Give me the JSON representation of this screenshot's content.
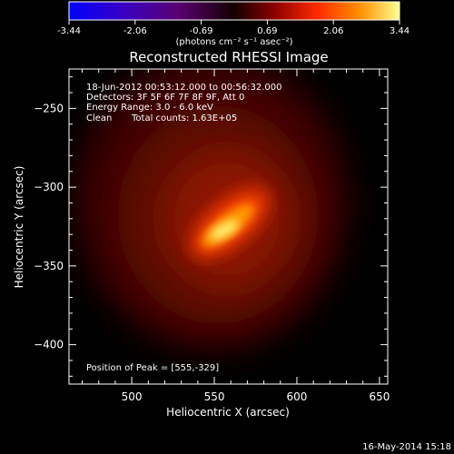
{
  "chart_data": {
    "type": "heatmap",
    "title": "Reconstructed RHESSI Image",
    "xlabel": "Heliocentric X (arcsec)",
    "ylabel": "Heliocentric Y (arcsec)",
    "xlim": [
      462,
      655
    ],
    "ylim": [
      -425,
      -225
    ],
    "x_ticks": [
      500,
      550,
      600,
      650
    ],
    "y_ticks": [
      -250,
      -300,
      -350,
      -400
    ],
    "colorbar": {
      "ticks": [
        "-3.44",
        "-2.06",
        "-0.69",
        "0.69",
        "2.06",
        "3.44"
      ],
      "range": [
        -3.44,
        3.44
      ],
      "units_label": "(photons cm⁻² s⁻¹ asec⁻²)",
      "colormap": [
        "#0000ff",
        "#3a00c0",
        "#5a0070",
        "#000000",
        "#6a0000",
        "#ff2000",
        "#ff8000",
        "#ffff80"
      ]
    },
    "annotations": {
      "time_range": "18-Jun-2012 00:53:12.000 to 00:56:32.000",
      "detectors": "Detectors: 3F 5F 6F 7F 8F 9F, Att 0",
      "energy": "Energy Range: 3.0 - 6.0 keV",
      "clean": "Clean",
      "total_counts": "Total counts: 1.63E+05",
      "peak": "Position of Peak = [555,-329]"
    },
    "peak_position": [
      555,
      -329
    ],
    "peak_value": 3.44,
    "footer_date": "16-May-2014 15:18"
  }
}
